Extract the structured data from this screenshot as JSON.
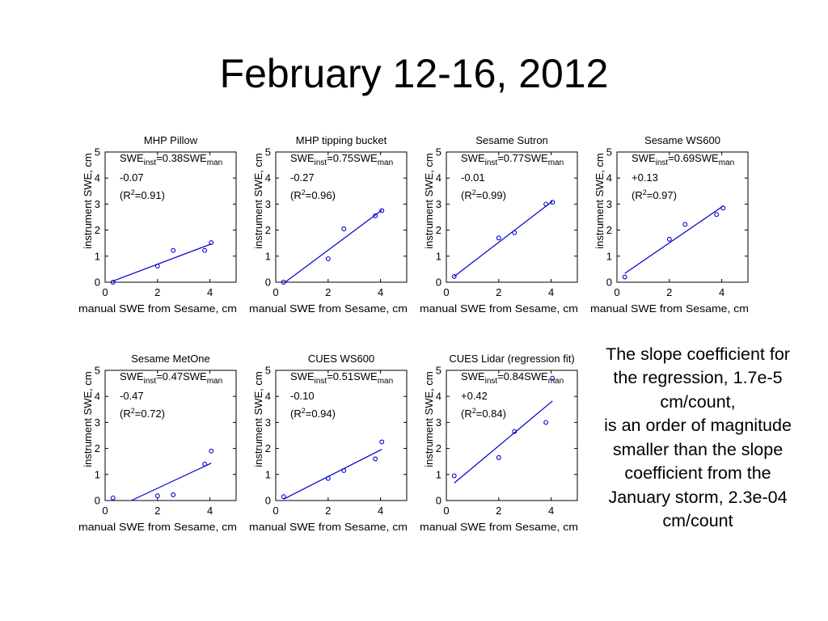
{
  "slide": {
    "title": "February 12-16, 2012"
  },
  "note": {
    "lines": [
      "The slope coefficient for",
      "the regression, 1.7e-5",
      "cm/count,",
      "is an order of magnitude",
      "smaller than the slope",
      "coefficient from the",
      "January storm, 2.3e-04",
      "cm/count"
    ]
  },
  "chart_data": [
    {
      "type": "scatter",
      "title": "MHP Pillow",
      "xlabel": "manual SWE from Sesame, cm",
      "ylabel": "instrument SWE, cm",
      "xlim": [
        0,
        5
      ],
      "ylim": [
        0,
        5
      ],
      "xticks": [
        0,
        2,
        4
      ],
      "yticks": [
        0,
        1,
        2,
        3,
        4,
        5
      ],
      "points": [
        [
          0.3,
          0.0
        ],
        [
          2.0,
          0.62
        ],
        [
          2.6,
          1.22
        ],
        [
          3.8,
          1.22
        ],
        [
          4.05,
          1.52
        ]
      ],
      "fit": {
        "line1_prefix": "SWE",
        "line1_sub1": "inst",
        "line1_mid": "=0.38SWE",
        "line1_sub2": "man",
        "intercept": "-0.07",
        "r2_prefix": "(R",
        "r2_sup": "2",
        "r2_suffix": "=0.91)",
        "slope": 0.38,
        "b": -0.07
      },
      "color": "#0000cc"
    },
    {
      "type": "scatter",
      "title": "MHP tipping bucket",
      "xlabel": "manual SWE from Sesame, cm",
      "ylabel": "instrument SWE, cm",
      "xlim": [
        0,
        5
      ],
      "ylim": [
        0,
        5
      ],
      "xticks": [
        0,
        2,
        4
      ],
      "yticks": [
        0,
        1,
        2,
        3,
        4,
        5
      ],
      "points": [
        [
          0.3,
          0.0
        ],
        [
          2.0,
          0.9
        ],
        [
          2.6,
          2.05
        ],
        [
          3.8,
          2.55
        ],
        [
          4.05,
          2.75
        ]
      ],
      "fit": {
        "line1_prefix": "SWE",
        "line1_sub1": "inst",
        "line1_mid": "=0.75SWE",
        "line1_sub2": "man",
        "intercept": "-0.27",
        "r2_prefix": "(R",
        "r2_sup": "2",
        "r2_suffix": "=0.96)",
        "slope": 0.75,
        "b": -0.27
      },
      "color": "#0000cc"
    },
    {
      "type": "scatter",
      "title": "Sesame Sutron",
      "xlabel": "manual SWE from Sesame, cm",
      "ylabel": "instrument SWE, cm",
      "xlim": [
        0,
        5
      ],
      "ylim": [
        0,
        5
      ],
      "xticks": [
        0,
        2,
        4
      ],
      "yticks": [
        0,
        1,
        2,
        3,
        4,
        5
      ],
      "points": [
        [
          0.3,
          0.22
        ],
        [
          2.0,
          1.7
        ],
        [
          2.6,
          1.9
        ],
        [
          3.8,
          3.0
        ],
        [
          4.05,
          3.07
        ]
      ],
      "fit": {
        "line1_prefix": "SWE",
        "line1_sub1": "inst",
        "line1_mid": "=0.77SWE",
        "line1_sub2": "man",
        "intercept": "-0.01",
        "r2_prefix": "(R",
        "r2_sup": "2",
        "r2_suffix": "=0.99)",
        "slope": 0.77,
        "b": -0.01
      },
      "color": "#0000cc"
    },
    {
      "type": "scatter",
      "title": "Sesame WS600",
      "xlabel": "manual SWE from Sesame, cm",
      "ylabel": "instrument SWE, cm",
      "xlim": [
        0,
        5
      ],
      "ylim": [
        0,
        5
      ],
      "xticks": [
        0,
        2,
        4
      ],
      "yticks": [
        0,
        1,
        2,
        3,
        4,
        5
      ],
      "points": [
        [
          0.3,
          0.2
        ],
        [
          2.0,
          1.65
        ],
        [
          2.6,
          2.22
        ],
        [
          3.8,
          2.6
        ],
        [
          4.05,
          2.85
        ]
      ],
      "fit": {
        "line1_prefix": "SWE",
        "line1_sub1": "inst",
        "line1_mid": "=0.69SWE",
        "line1_sub2": "man",
        "intercept": "+0.13",
        "r2_prefix": "(R",
        "r2_sup": "2",
        "r2_suffix": "=0.97)",
        "slope": 0.69,
        "b": 0.13
      },
      "color": "#0000cc"
    },
    {
      "type": "scatter",
      "title": "Sesame MetOne",
      "xlabel": "manual SWE from Sesame, cm",
      "ylabel": "instrument SWE, cm",
      "xlim": [
        0,
        5
      ],
      "ylim": [
        0,
        5
      ],
      "xticks": [
        0,
        2,
        4
      ],
      "yticks": [
        0,
        1,
        2,
        3,
        4,
        5
      ],
      "points": [
        [
          0.3,
          0.1
        ],
        [
          2.0,
          0.18
        ],
        [
          2.6,
          0.22
        ],
        [
          3.8,
          1.4
        ],
        [
          4.05,
          1.9
        ]
      ],
      "fit": {
        "line1_prefix": "SWE",
        "line1_sub1": "inst",
        "line1_mid": "=0.47SWE",
        "line1_sub2": "man",
        "intercept": "-0.47",
        "r2_prefix": "(R",
        "r2_sup": "2",
        "r2_suffix": "=0.72)",
        "slope": 0.47,
        "b": -0.47
      },
      "color": "#0000cc"
    },
    {
      "type": "scatter",
      "title": "CUES WS600",
      "xlabel": "manual SWE from Sesame, cm",
      "ylabel": "instrument SWE, cm",
      "xlim": [
        0,
        5
      ],
      "ylim": [
        0,
        5
      ],
      "xticks": [
        0,
        2,
        4
      ],
      "yticks": [
        0,
        1,
        2,
        3,
        4,
        5
      ],
      "points": [
        [
          0.3,
          0.15
        ],
        [
          2.0,
          0.85
        ],
        [
          2.6,
          1.15
        ],
        [
          3.8,
          1.6
        ],
        [
          4.05,
          2.25
        ]
      ],
      "fit": {
        "line1_prefix": "SWE",
        "line1_sub1": "inst",
        "line1_mid": "=0.51SWE",
        "line1_sub2": "man",
        "intercept": "-0.10",
        "r2_prefix": "(R",
        "r2_sup": "2",
        "r2_suffix": "=0.94)",
        "slope": 0.51,
        "b": -0.1
      },
      "color": "#0000cc"
    },
    {
      "type": "scatter",
      "title": "CUES Lidar (regression fit)",
      "xlabel": "manual SWE from Sesame, cm",
      "ylabel": "instrument SWE, cm",
      "xlim": [
        0,
        5
      ],
      "ylim": [
        0,
        5
      ],
      "xticks": [
        0,
        2,
        4
      ],
      "yticks": [
        0,
        1,
        2,
        3,
        4,
        5
      ],
      "points": [
        [
          0.3,
          0.95
        ],
        [
          2.0,
          1.65
        ],
        [
          2.6,
          2.65
        ],
        [
          3.8,
          3.0
        ],
        [
          4.05,
          4.7
        ]
      ],
      "fit": {
        "line1_prefix": "SWE",
        "line1_sub1": "inst",
        "line1_mid": "=0.84SWE",
        "line1_sub2": "man",
        "intercept": "+0.42",
        "r2_prefix": "(R",
        "r2_sup": "2",
        "r2_suffix": "=0.84)",
        "slope": 0.84,
        "b": 0.42
      },
      "color": "#0000cc"
    }
  ]
}
